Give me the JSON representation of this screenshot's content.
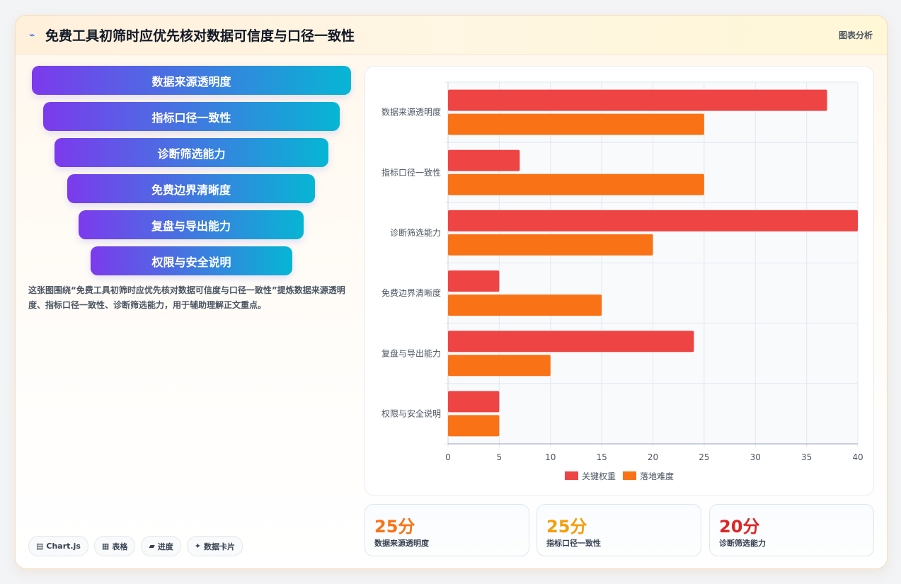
{
  "header": {
    "icon": "chart-line-icon",
    "title": "免费工具初筛时应优先核对数据可信度与口径一致性",
    "tag": "图表分析"
  },
  "funnel": {
    "items": [
      "数据来源透明度",
      "指标口径一致性",
      "诊断筛选能力",
      "免费边界清晰度",
      "复盘与导出能力",
      "权限与安全说明"
    ]
  },
  "description": "这张图围绕“免费工具初筛时应优先核对数据可信度与口径一致性”提炼数据来源透明度、指标口径一致性、诊断筛选能力，用于辅助理解正文重点。",
  "pills": [
    {
      "icon": "▤",
      "label": "Chart.js"
    },
    {
      "icon": "▦",
      "label": "表格"
    },
    {
      "icon": "▰",
      "label": "进度"
    },
    {
      "icon": "✦",
      "label": "数据卡片"
    }
  ],
  "chart_data": {
    "type": "bar",
    "orientation": "horizontal",
    "categories": [
      "数据来源透明度",
      "指标口径一致性",
      "诊断筛选能力",
      "免费边界清晰度",
      "复盘与导出能力",
      "权限与安全说明"
    ],
    "series": [
      {
        "name": "关键权重",
        "color": "#ef4444",
        "values": [
          37,
          7,
          40,
          5,
          24,
          5
        ]
      },
      {
        "name": "落地难度",
        "color": "#f97316",
        "values": [
          25,
          25,
          20,
          15,
          10,
          5
        ]
      }
    ],
    "xlim": [
      0,
      40
    ],
    "xticks": [
      0,
      5,
      10,
      15,
      20,
      25,
      30,
      35,
      40
    ],
    "grid": true,
    "legend": "bottom"
  },
  "stats": [
    {
      "value": "25分",
      "label": "数据来源透明度",
      "color": "#f97316"
    },
    {
      "value": "25分",
      "label": "指标口径一致性",
      "color": "#f59e0b"
    },
    {
      "value": "20分",
      "label": "诊断筛选能力",
      "color": "#dc2626"
    }
  ]
}
